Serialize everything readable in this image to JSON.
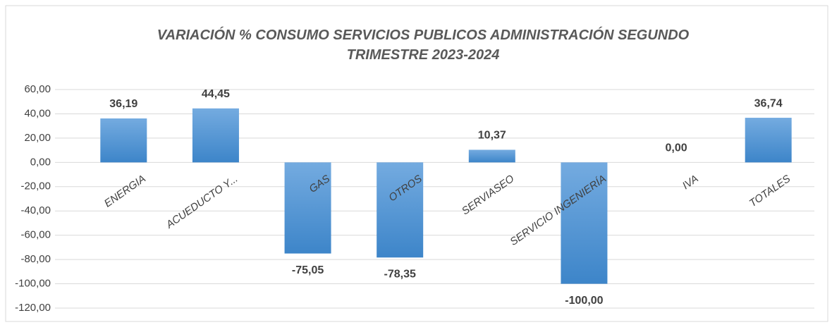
{
  "chart_data": {
    "type": "bar",
    "title": "VARIACIÓN % CONSUMO SERVICIOS PUBLICOS ADMINISTRACIÓN SEGUNDO TRIMESTRE 2023-2024",
    "categories": [
      "ENERGIA",
      "ACUEDUCTO Y...",
      "GAS",
      "OTROS",
      "SERVIASEO",
      "SERVICIO INGENIERÍA",
      "IVA",
      "TOTALES"
    ],
    "values": [
      36.19,
      44.45,
      -75.05,
      -78.35,
      10.37,
      -100.0,
      0.0,
      36.74
    ],
    "value_labels": [
      "36,19",
      "44,45",
      "-75,05",
      "-78,35",
      "10,37",
      "-100,00",
      "0,00",
      "36,74"
    ],
    "color": "#5b9bd5",
    "ylim": [
      -120,
      60
    ],
    "yticks": [
      {
        "value": 60,
        "label": "60,00"
      },
      {
        "value": 40,
        "label": "40,00"
      },
      {
        "value": 20,
        "label": "20,00"
      },
      {
        "value": 0,
        "label": "0,00"
      },
      {
        "value": -20,
        "label": "-20,00"
      },
      {
        "value": -40,
        "label": "-40,00"
      },
      {
        "value": -60,
        "label": "-60,00"
      },
      {
        "value": -80,
        "label": "-80,00"
      },
      {
        "value": -100,
        "label": "-100,00"
      },
      {
        "value": -120,
        "label": "-120,00"
      }
    ],
    "grid": true
  }
}
